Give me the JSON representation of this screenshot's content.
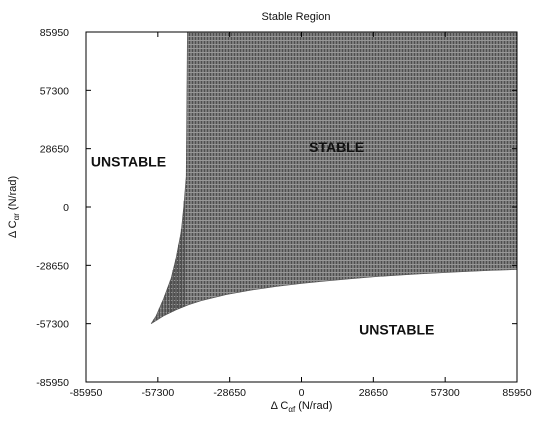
{
  "chart_data": {
    "type": "area",
    "title": "Stable Region",
    "xlabel": {
      "main": "Δ C",
      "sub": "αf",
      "unit": "(N/rad)"
    },
    "ylabel": {
      "main": "Δ C",
      "sub": "αr",
      "unit": "(N/rad)"
    },
    "xlim": [
      -85950,
      85950
    ],
    "ylim": [
      -85950,
      85950
    ],
    "xticks": [
      -85950,
      -57300,
      -28650,
      0,
      28650,
      57300,
      85950
    ],
    "yticks": [
      -85950,
      -57300,
      -28650,
      0,
      28650,
      57300,
      85950
    ],
    "xtick_labels": [
      "-85950",
      "-57300",
      "-28650",
      "0",
      "28650",
      "57300",
      "85950"
    ],
    "ytick_labels": [
      "-85950",
      "-57300",
      "-28650",
      "0",
      "28650",
      "57300",
      "85950"
    ],
    "grid": false,
    "fill_color": "#7a7a7a",
    "stable_region": {
      "description_label": "STABLE",
      "top_y": 85950,
      "left_boundary": {
        "x": [
          -60000,
          -58000,
          -55000,
          -52000,
          -50000,
          -48000,
          -47000,
          -46000,
          -45500
        ],
        "y": [
          -57300,
          -53500,
          -45000,
          -35000,
          -25000,
          -12000,
          0,
          15000,
          85950
        ]
      },
      "bottom_boundary": {
        "x": [
          -60000,
          -55000,
          -50000,
          -45000,
          -40000,
          -30000,
          -20000,
          -10000,
          0,
          10000,
          20000,
          30000,
          45000,
          60000,
          75000,
          85950
        ],
        "y": [
          -57300,
          -53500,
          -50500,
          -48000,
          -46000,
          -43000,
          -40800,
          -39000,
          -37500,
          -36300,
          -35200,
          -34200,
          -33000,
          -32000,
          -31200,
          -30700
        ]
      }
    },
    "annotations": [
      {
        "text": "UNSTABLE",
        "x": -69000,
        "y": 20000
      },
      {
        "text": "STABLE",
        "x": 14000,
        "y": 27000
      },
      {
        "text": "UNSTABLE",
        "x": 38000,
        "y": -62500
      }
    ]
  }
}
